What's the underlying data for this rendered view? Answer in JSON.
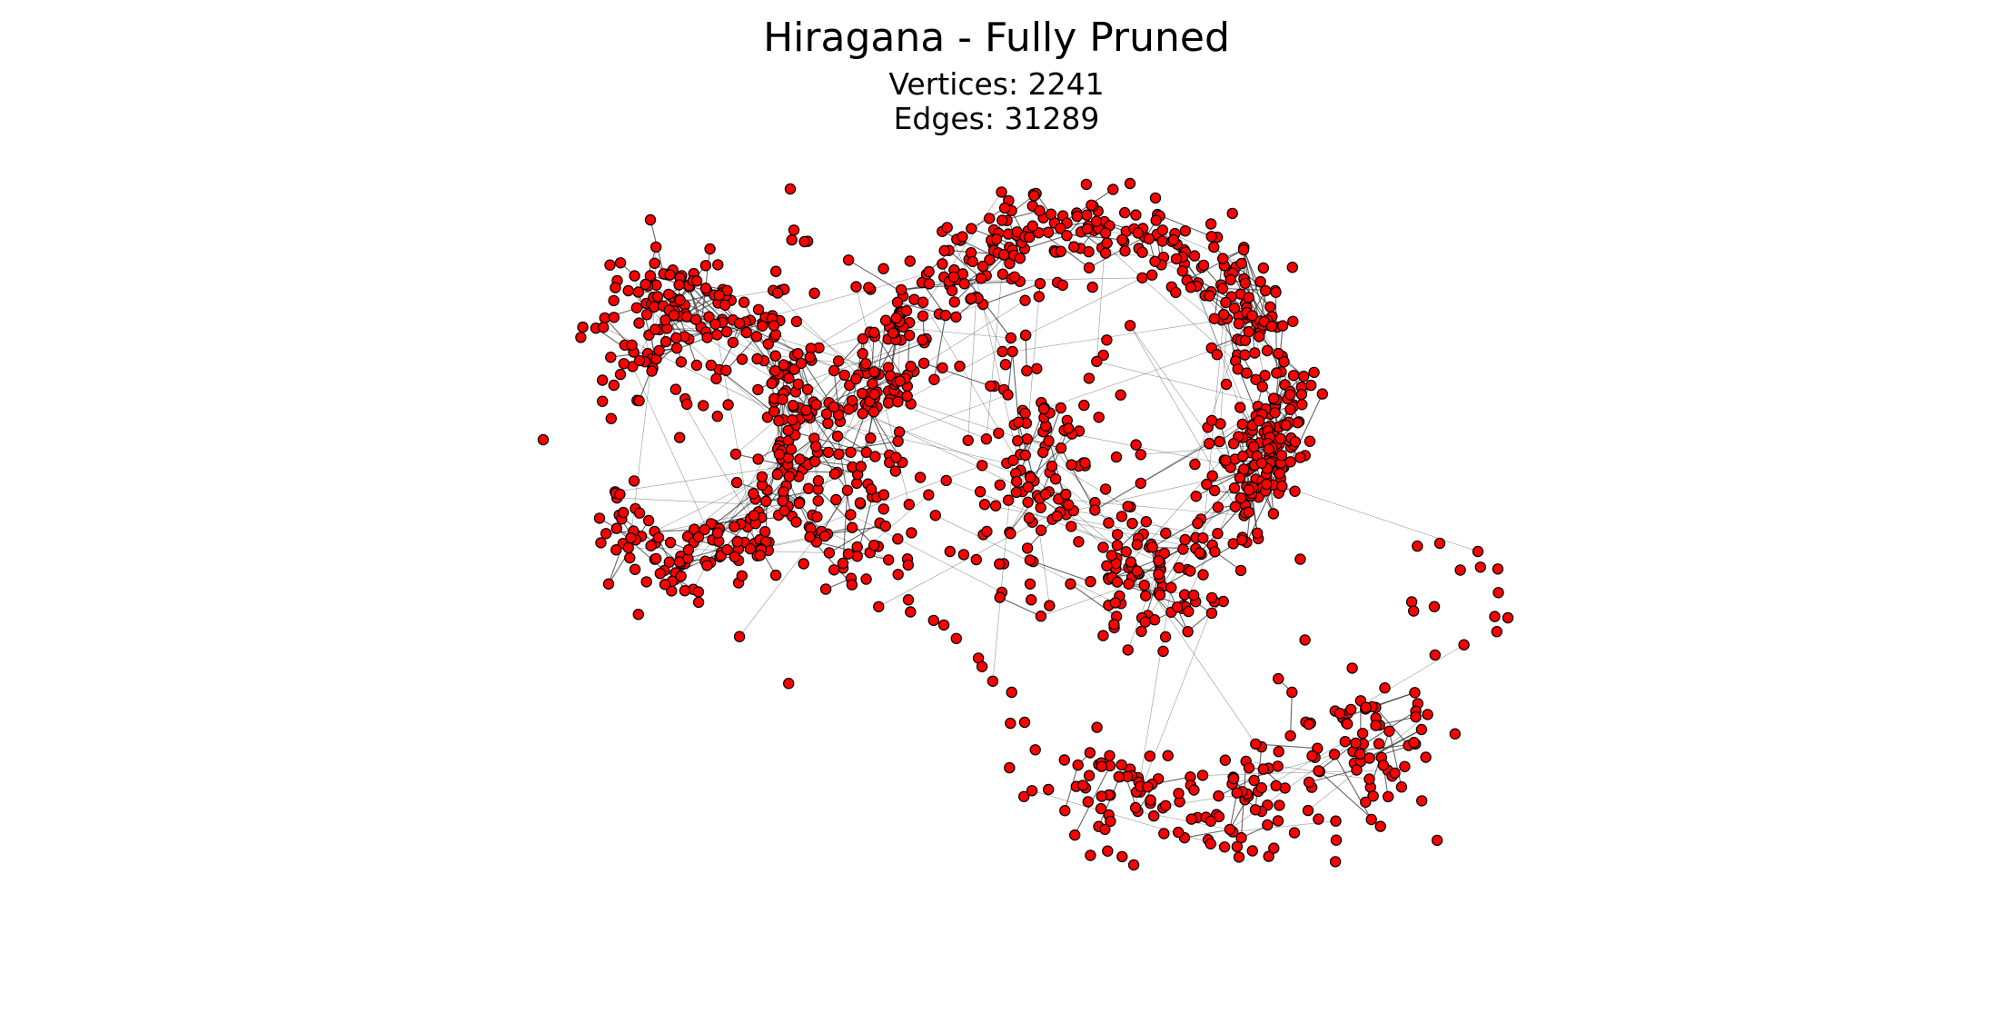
{
  "figure": {
    "title": "Hiragana - Fully Pruned",
    "vertices_text": "Vertices: 2241",
    "edges_text": "Edges: 31289"
  },
  "graph": {
    "vertex_count": 2241,
    "edge_count": 31289,
    "node_fill": "#ff0000",
    "node_stroke": "#000000",
    "edge_color": "#333333",
    "background": "#ffffff",
    "axes": "off"
  }
}
